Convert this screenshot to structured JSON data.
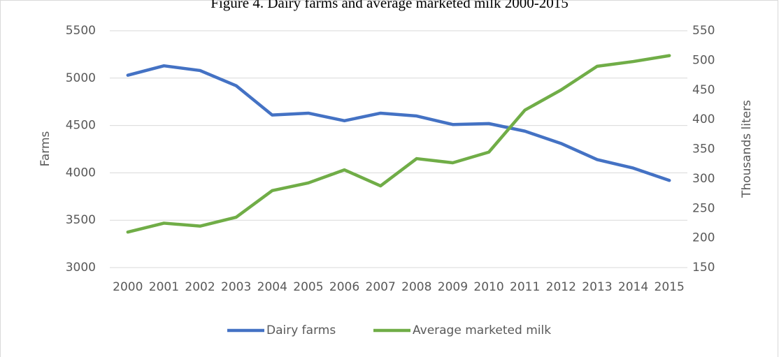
{
  "chart_data": {
    "type": "line",
    "title": "Figure 4. Dairy farms and average marketed milk 2000-2015",
    "ylabel": "Farms",
    "y2label": "Thousands liters",
    "categories": [
      "2000",
      "2001",
      "2002",
      "2003",
      "2004",
      "2005",
      "2006",
      "2007",
      "2008",
      "2009",
      "2010",
      "2011",
      "2012",
      "2013",
      "2014",
      "2015"
    ],
    "series": [
      {
        "name": "Dairy farms",
        "color": "#4472c4",
        "values": [
          5030,
          5130,
          5080,
          4920,
          4610,
          4630,
          4550,
          4630,
          4600,
          4510,
          4520,
          4440,
          4310,
          4140,
          4050,
          3920
        ]
      },
      {
        "name": "Average marketed milk",
        "color": "#70ad47",
        "axis": "y2",
        "values": [
          210,
          225,
          220,
          235,
          280,
          293,
          315,
          288,
          334,
          327,
          345,
          416,
          450,
          490,
          498,
          508
        ]
      }
    ],
    "ylim": [
      3000,
      5500
    ],
    "yticks": [
      3000,
      3500,
      4000,
      4500,
      5000,
      5500
    ],
    "y2lim": [
      150,
      550
    ],
    "y2ticks": [
      150,
      200,
      250,
      300,
      350,
      400,
      450,
      500,
      550
    ],
    "grid": true,
    "legend": "bottom"
  }
}
